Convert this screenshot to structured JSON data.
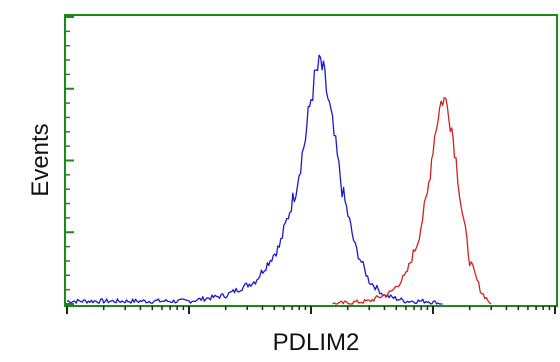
{
  "chart_data": {
    "type": "line",
    "title": "",
    "xlabel": "PDLIM2",
    "ylabel": "Events",
    "x_scale": "log",
    "xlim": [
      1,
      10000
    ],
    "ylim": [
      0,
      100
    ],
    "grid": false,
    "legend": "none",
    "frame_color": "#1a8a1a",
    "series": [
      {
        "color": "#1a1acc",
        "x": [
          1,
          2,
          5,
          10,
          20,
          35,
          55,
          75,
          90,
          100,
          110,
          120,
          130,
          150,
          180,
          230,
          300,
          400,
          600,
          900,
          1200
        ],
        "y": [
          1,
          1,
          1,
          1,
          3,
          8,
          20,
          40,
          58,
          72,
          80,
          84,
          78,
          62,
          40,
          20,
          8,
          3,
          1,
          1,
          0
        ]
      },
      {
        "color": "#d42020",
        "x": [
          150,
          300,
          450,
          600,
          750,
          900,
          1000,
          1100,
          1200,
          1350,
          1500,
          1700,
          2000,
          2500,
          3000
        ],
        "y": [
          0,
          1,
          4,
          10,
          22,
          38,
          55,
          66,
          72,
          68,
          55,
          35,
          15,
          4,
          0
        ]
      }
    ]
  }
}
